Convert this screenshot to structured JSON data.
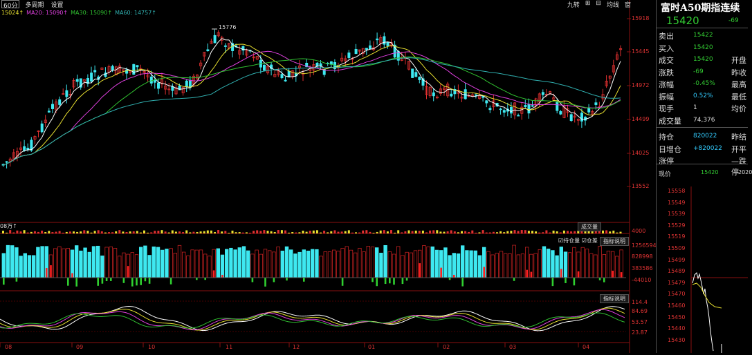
{
  "toolbar": {
    "period": "60分",
    "multi_period": "多周期",
    "settings": "设置"
  },
  "ma_legend": {
    "close": "15024↑",
    "ma20": "MA20: 15090↑",
    "ma30": "MA30: 15090↑",
    "ma60": "MA60: 14757↑"
  },
  "chart_tools": {
    "jiuzhuan": "九转",
    "zoom_in": "⊞",
    "zoom_out": "⊟",
    "layout": "均线",
    "window": "窗"
  },
  "price_axis": [
    "15918",
    "15445",
    "14972",
    "14499",
    "14025",
    "13552"
  ],
  "peak_label": "15776",
  "volume_panel": {
    "unit_label": "08万↑",
    "indicator_button": "成交量",
    "scale_label": "4000"
  },
  "oi_panel": {
    "checkbox_oi": "持仓量",
    "checkbox_diff": "仓差",
    "explain": "指标说明",
    "axis": [
      "1256594",
      "828998",
      "383586",
      "-44010"
    ]
  },
  "osc_panel": {
    "explain": "指标说明",
    "axis": [
      "114.4",
      "84.69",
      "53.57",
      "23.87"
    ]
  },
  "x_axis": [
    "08",
    "09",
    "10",
    "11",
    "12",
    "01",
    "02",
    "03",
    "04"
  ],
  "colors": {
    "up": "#e03030",
    "down": "#3ee8f0",
    "ma_white": "#ffffff",
    "ma_yellow": "#e8e030",
    "ma_magenta": "#e040e0",
    "ma_green": "#30c030",
    "ma_cyan": "#30b0b0",
    "grid_red": "#6a0000"
  },
  "quote": {
    "title": "富时A50期指连续",
    "price": "15420",
    "change": "-69",
    "rows": [
      {
        "k": "卖出",
        "v": "15422",
        "k2": "",
        "color": "#3c3"
      },
      {
        "k": "买入",
        "v": "15420",
        "k2": "",
        "color": "#3c3"
      },
      {
        "k": "成交",
        "v": "15420",
        "k2": "开盘",
        "color": "#3c3"
      },
      {
        "k": "涨跌",
        "v": "-69",
        "k2": "昨收",
        "color": "#3c3"
      },
      {
        "k": "涨幅",
        "v": "-0.45%",
        "k2": "最高",
        "color": "#3c3"
      },
      {
        "k": "振幅",
        "v": "0.52%",
        "k2": "最低",
        "color": "#3cf"
      },
      {
        "k": "现手",
        "v": "1",
        "k2": "均价",
        "color": "#ddd"
      },
      {
        "k": "成交量",
        "v": "74,376",
        "k2": "",
        "color": "#ddd"
      },
      {
        "k": "持仓",
        "v": "820022",
        "k2": "昨结",
        "color": "#3cf"
      },
      {
        "k": "日增仓",
        "v": "+820022",
        "k2": "开平",
        "color": "#3cf"
      },
      {
        "k": "涨停",
        "v": "",
        "k2": "—跌停",
        "color": "#ddd"
      }
    ],
    "now_label": "现价",
    "now_price": "15420",
    "now_time": "2020",
    "mini_axis": [
      "15558",
      "15549",
      "15539",
      "15529",
      "15519",
      "15509",
      "15499",
      "15489",
      "15479",
      "15470",
      "15460",
      "15450",
      "15440",
      "15430"
    ]
  }
}
